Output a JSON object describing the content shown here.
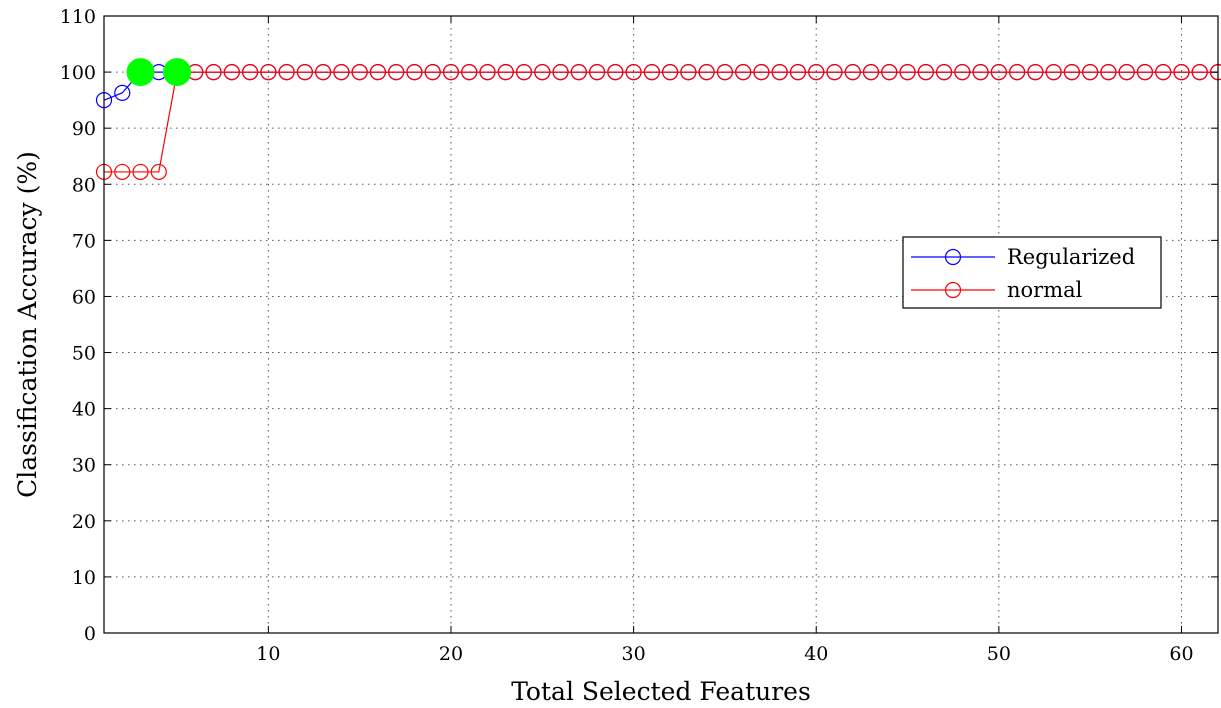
{
  "chart_data": {
    "type": "line",
    "title": "",
    "xlabel": "Total Selected Features",
    "ylabel": "Classification Accuracy (%)",
    "xlim": [
      1,
      62
    ],
    "ylim": [
      0,
      110
    ],
    "x_ticks": [
      10,
      20,
      30,
      40,
      50,
      60
    ],
    "y_ticks": [
      0,
      10,
      20,
      30,
      40,
      50,
      60,
      70,
      80,
      90,
      100,
      110
    ],
    "grid": true,
    "legend_position": "center-right",
    "x": [
      1,
      2,
      3,
      4,
      5,
      6,
      7,
      8,
      9,
      10,
      11,
      12,
      13,
      14,
      15,
      16,
      17,
      18,
      19,
      20,
      21,
      22,
      23,
      24,
      25,
      26,
      27,
      28,
      29,
      30,
      31,
      32,
      33,
      34,
      35,
      36,
      37,
      38,
      39,
      40,
      41,
      42,
      43,
      44,
      45,
      46,
      47,
      48,
      49,
      50,
      51,
      52,
      53,
      54,
      55,
      56,
      57,
      58,
      59,
      60,
      61,
      62
    ],
    "series": [
      {
        "name": "Regularized",
        "color": "#0000ff",
        "marker": "circle-open",
        "values": [
          95.0,
          96.3,
          100,
          100,
          100,
          100,
          100,
          100,
          100,
          100,
          100,
          100,
          100,
          100,
          100,
          100,
          100,
          100,
          100,
          100,
          100,
          100,
          100,
          100,
          100,
          100,
          100,
          100,
          100,
          100,
          100,
          100,
          100,
          100,
          100,
          100,
          100,
          100,
          100,
          100,
          100,
          100,
          100,
          100,
          100,
          100,
          100,
          100,
          100,
          100,
          100,
          100,
          100,
          100,
          100,
          100,
          100,
          100,
          100,
          100,
          100,
          100
        ]
      },
      {
        "name": "normal",
        "color": "#ff0000",
        "marker": "circle-open",
        "values": [
          82.2,
          82.2,
          82.2,
          82.2,
          100,
          100,
          100,
          100,
          100,
          100,
          100,
          100,
          100,
          100,
          100,
          100,
          100,
          100,
          100,
          100,
          100,
          100,
          100,
          100,
          100,
          100,
          100,
          100,
          100,
          100,
          100,
          100,
          100,
          100,
          100,
          100,
          100,
          100,
          100,
          100,
          100,
          100,
          100,
          100,
          100,
          100,
          100,
          100,
          100,
          100,
          100,
          100,
          100,
          100,
          100,
          100,
          100,
          100,
          100,
          100,
          100,
          100
        ]
      }
    ],
    "highlights": [
      {
        "series": "Regularized",
        "x": 3,
        "y": 100,
        "color": "#00ff00"
      },
      {
        "series": "normal",
        "x": 5,
        "y": 100,
        "color": "#00ff00"
      }
    ]
  }
}
